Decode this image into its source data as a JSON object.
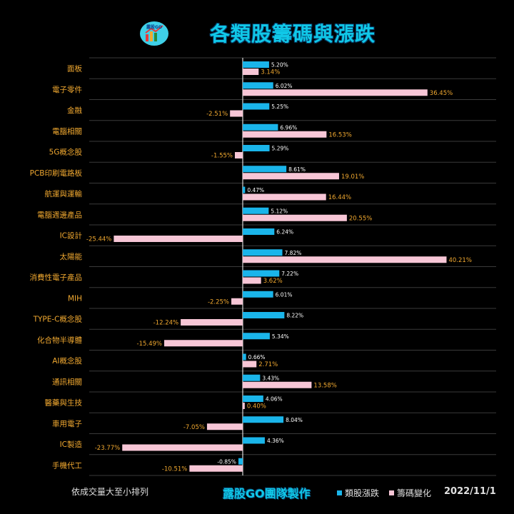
{
  "header": {
    "title": "各類股籌碼與漲跌",
    "logo_text": "露股GO"
  },
  "colors": {
    "background": "#000000",
    "series_change": "#1ab5ea",
    "series_chips": "#f7c6d6",
    "label_change": "#ffffff",
    "label_chips": "#f0a830",
    "category_text": "#f0a830",
    "divider": "#3a3a3a"
  },
  "chart_data": {
    "type": "bar",
    "orientation": "horizontal",
    "categories": [
      "面板",
      "電子零件",
      "金融",
      "電腦相關",
      "5G概念股",
      "PCB印刷電路板",
      "航運與運輸",
      "電腦週邊產品",
      "IC設計",
      "太陽能",
      "消費性電子產品",
      "MIH",
      "TYPE-C概念股",
      "化合物半導體",
      "AI概念股",
      "通訊相關",
      "醫藥與生技",
      "車用電子",
      "IC製造",
      "手機代工"
    ],
    "series": [
      {
        "name": "類股漲跌",
        "values": [
          5.2,
          6.02,
          5.25,
          6.96,
          5.29,
          8.61,
          0.47,
          5.12,
          6.24,
          7.82,
          7.22,
          6.01,
          8.22,
          5.34,
          0.66,
          3.43,
          4.06,
          8.04,
          4.36,
          -0.85
        ],
        "labels": [
          "5.20%",
          "6.02%",
          "5.25%",
          "6.96%",
          "5.29%",
          "8.61%",
          "0.47%",
          "5.12%",
          "6.24%",
          "7.82%",
          "7.22%",
          "6.01%",
          "8.22%",
          "5.34%",
          "0.66%",
          "3.43%",
          "4.06%",
          "8.04%",
          "4.36%",
          "-0.85%"
        ]
      },
      {
        "name": "籌碼變化",
        "values": [
          3.14,
          36.45,
          -2.51,
          16.53,
          -1.55,
          19.01,
          16.44,
          20.55,
          -25.44,
          40.21,
          3.62,
          -2.25,
          -12.24,
          -15.49,
          2.71,
          13.58,
          0.4,
          -7.05,
          -23.77,
          -10.51
        ],
        "labels": [
          "3.14%",
          "36.45%",
          "-2.51%",
          "16.53%",
          "-1.55%",
          "19.01%",
          "16.44%",
          "20.55%",
          "-25.44%",
          "40.21%",
          "3.62%",
          "-2.25%",
          "-12.24%",
          "-15.49%",
          "2.71%",
          "13.58%",
          "0.40%",
          "-7.05%",
          "-23.77%",
          "-10.51%"
        ]
      }
    ],
    "legend_position": "bottom-right",
    "grid": false
  },
  "footer": {
    "sort_note": "依成交量大至小排列",
    "credit": "露股GO團隊製作",
    "date": "2022/11/1"
  }
}
